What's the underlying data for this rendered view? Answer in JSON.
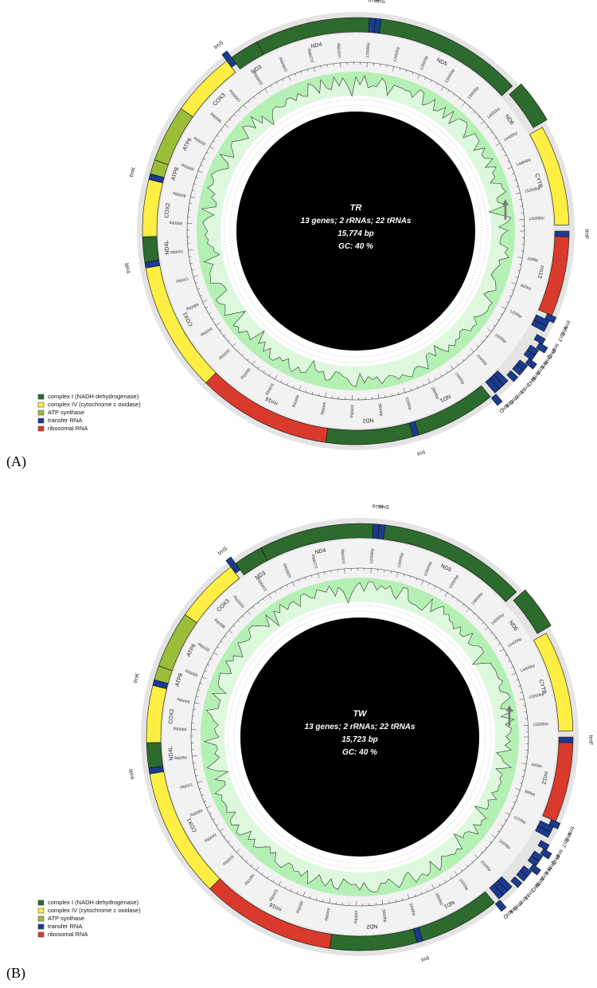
{
  "panels": [
    {
      "id": "A",
      "panel_label": "(A)",
      "center": {
        "name": "TR",
        "line2": "13 genes; 2 rRNAs; 22 tRNAs",
        "line3": "15,774 bp",
        "line4": "GC: 40 %"
      },
      "legend": [
        {
          "label": "complex I (NADH dehydrogenase)",
          "color": "#2d6a2d"
        },
        {
          "label": "complex IV (cytochrome c oxidase)",
          "color": "#ffee44"
        },
        {
          "label": "ATP synthase",
          "color": "#9cbd3a"
        },
        {
          "label": "transfer RNA",
          "color": "#1a3b8f"
        },
        {
          "label": "ribosomal RNA",
          "color": "#d93a2b"
        }
      ],
      "ticks": [
        "400bp",
        "800bp",
        "1200bp",
        "1600bp",
        "2000bp",
        "2400bp",
        "2800bp",
        "3200bp",
        "3600bp",
        "4000bp",
        "4400bp",
        "4800bp",
        "5200bp",
        "5600bp",
        "6000bp",
        "6400bp",
        "6800bp",
        "7200bp",
        "7600bp",
        "8000bp",
        "8400bp",
        "8800bp",
        "9200bp",
        "9600bp",
        "10000bp",
        "10400bp",
        "10800bp",
        "11200bp",
        "11600bp",
        "12000bp",
        "12400bp",
        "12800bp",
        "13200bp",
        "13600bp",
        "14000bp",
        "14400bp",
        "14800bp",
        "15200bp",
        "15600bp"
      ]
    },
    {
      "id": "B",
      "panel_label": "(B)",
      "center": {
        "name": "TW",
        "line2": "13 genes; 2 rRNAs; 22 tRNAs",
        "line3": "15,723 bp",
        "line4": "GC: 40 %"
      },
      "legend": [
        {
          "label": "complex I (NADH dehydrogenase)",
          "color": "#2d6a2d"
        },
        {
          "label": "complex IV (cytochrome c oxidase)",
          "color": "#ffee44"
        },
        {
          "label": "ATP synthase",
          "color": "#9cbd3a"
        },
        {
          "label": "transfer RNA",
          "color": "#1a3b8f"
        },
        {
          "label": "ribosomal RNA",
          "color": "#d93a2b"
        }
      ],
      "ticks": [
        "400bp",
        "800bp",
        "1200bp",
        "1600bp",
        "2000bp",
        "2400bp",
        "2800bp",
        "3200bp",
        "3600bp",
        "4000bp",
        "4400bp",
        "4800bp",
        "5200bp",
        "5600bp",
        "6000bp",
        "6400bp",
        "6800bp",
        "7200bp",
        "7600bp",
        "8000bp",
        "8400bp",
        "8800bp",
        "9200bp",
        "9600bp",
        "10000bp",
        "10400bp",
        "10800bp",
        "11200bp",
        "11600bp",
        "12000bp",
        "12400bp",
        "12800bp",
        "13200bp",
        "13600bp",
        "14000bp",
        "14400bp",
        "14800bp",
        "15200bp",
        "15600bp"
      ]
    }
  ],
  "genes": [
    {
      "name": "trnF",
      "start": 0,
      "end": 68,
      "strand": "heavy",
      "type": "trna",
      "color": "#1a3b8f"
    },
    {
      "name": "rrn12",
      "start": 68,
      "end": 1020,
      "strand": "heavy",
      "type": "rrna",
      "color": "#d93a2b"
    },
    {
      "name": "trnV",
      "start": 1020,
      "end": 1090,
      "strand": "light",
      "type": "trna",
      "color": "#1a3b8f"
    },
    {
      "name": "trnE",
      "start": 1090,
      "end": 1160,
      "strand": "heavy",
      "type": "trna",
      "color": "#1a3b8f"
    },
    {
      "name": "trnT",
      "start": 1160,
      "end": 1230,
      "strand": "heavy",
      "type": "trna",
      "color": "#1a3b8f"
    },
    {
      "name": "trnP",
      "start": 1300,
      "end": 1370,
      "strand": "light",
      "type": "trna",
      "color": "#1a3b8f"
    },
    {
      "name": "trnQ",
      "start": 1370,
      "end": 1440,
      "strand": "light2",
      "type": "trna",
      "color": "#1a3b8f"
    },
    {
      "name": "trnN",
      "start": 1450,
      "end": 1520,
      "strand": "light",
      "type": "trna",
      "color": "#1a3b8f"
    },
    {
      "name": "trnL",
      "start": 1520,
      "end": 1590,
      "strand": "light",
      "type": "trna",
      "color": "#1a3b8f"
    },
    {
      "name": "trnA",
      "start": 1590,
      "end": 1660,
      "strand": "light2",
      "type": "trna",
      "color": "#1a3b8f"
    },
    {
      "name": "trnW",
      "start": 1670,
      "end": 1740,
      "strand": "light",
      "type": "trna",
      "color": "#1a3b8f"
    },
    {
      "name": "trnC",
      "start": 1740,
      "end": 1810,
      "strand": "light",
      "type": "trna",
      "color": "#1a3b8f"
    },
    {
      "name": "trnM",
      "start": 1840,
      "end": 1910,
      "strand": "light",
      "type": "trna",
      "color": "#1a3b8f"
    },
    {
      "name": "trnY",
      "start": 1950,
      "end": 2020,
      "strand": "heavy",
      "type": "trna",
      "color": "#1a3b8f"
    },
    {
      "name": "trnG",
      "start": 2020,
      "end": 2090,
      "strand": "heavy",
      "type": "trna",
      "color": "#1a3b8f"
    },
    {
      "name": "trnL",
      "start": 2090,
      "end": 2160,
      "strand": "heavy",
      "type": "trna",
      "color": "#1a3b8f"
    },
    {
      "name": "trnD",
      "start": 2160,
      "end": 2230,
      "strand": "light2",
      "type": "trna",
      "color": "#1a3b8f"
    },
    {
      "name": "ND1",
      "start": 2230,
      "end": 3190,
      "strand": "heavy",
      "type": "nd",
      "color": "#2d6a2d"
    },
    {
      "name": "trnI",
      "start": 3190,
      "end": 3260,
      "strand": "heavy",
      "type": "trna",
      "color": "#1a3b8f"
    },
    {
      "name": "ND2",
      "start": 3260,
      "end": 4300,
      "strand": "heavy",
      "type": "nd",
      "color": "#2d6a2d"
    },
    {
      "name": "rrn16",
      "start": 4300,
      "end": 5900,
      "strand": "heavy",
      "type": "rrna",
      "color": "#d93a2b"
    },
    {
      "name": "COX1",
      "start": 5900,
      "end": 7450,
      "strand": "heavy",
      "type": "cox",
      "color": "#ffee44"
    },
    {
      "name": "trnR",
      "start": 7450,
      "end": 7520,
      "strand": "heavy",
      "type": "trna",
      "color": "#1a3b8f"
    },
    {
      "name": "ND4L",
      "start": 7520,
      "end": 7820,
      "strand": "heavy",
      "type": "nd",
      "color": "#2d6a2d"
    },
    {
      "name": "COX2",
      "start": 7820,
      "end": 8500,
      "strand": "heavy",
      "type": "cox",
      "color": "#ffee44"
    },
    {
      "name": "trnK",
      "start": 8500,
      "end": 8570,
      "strand": "heavy",
      "type": "trna",
      "color": "#1a3b8f"
    },
    {
      "name": "ATP8",
      "start": 8570,
      "end": 8740,
      "strand": "heavy",
      "type": "atp",
      "color": "#9cbd3a"
    },
    {
      "name": "ATP6",
      "start": 8740,
      "end": 9420,
      "strand": "heavy",
      "type": "atp",
      "color": "#9cbd3a"
    },
    {
      "name": "COX3",
      "start": 9420,
      "end": 10200,
      "strand": "heavy",
      "type": "cox",
      "color": "#ffee44"
    },
    {
      "name": "trnS",
      "start": 10200,
      "end": 10270,
      "strand": "outer",
      "type": "trna",
      "color": "#1a3b8f"
    },
    {
      "name": "ND3",
      "start": 10270,
      "end": 10620,
      "strand": "heavy",
      "type": "nd",
      "color": "#2d6a2d"
    },
    {
      "name": "ND4",
      "start": 10620,
      "end": 11990,
      "strand": "heavy",
      "type": "nd",
      "color": "#2d6a2d"
    },
    {
      "name": "trnH",
      "start": 11990,
      "end": 12060,
      "strand": "heavy",
      "type": "trna",
      "color": "#1a3b8f"
    },
    {
      "name": "trnS",
      "start": 12060,
      "end": 12130,
      "strand": "heavy",
      "type": "trna",
      "color": "#1a3b8f"
    },
    {
      "name": "ND5",
      "start": 12130,
      "end": 13900,
      "strand": "heavy",
      "type": "nd",
      "color": "#2d6a2d"
    },
    {
      "name": "ND6",
      "start": 13950,
      "end": 14450,
      "strand": "outer",
      "type": "nd",
      "color": "#2d6a2d"
    },
    {
      "name": "CYTB",
      "start": 14500,
      "end": 15700,
      "strand": "heavy",
      "type": "cox",
      "color": "#ffee44"
    }
  ],
  "colors": {
    "outer_ring": "#e4e4e4",
    "inner_ring": "#f2f2f2",
    "gc_fill": "#b4f0b4",
    "gc_line": "#2a8a2a",
    "core": "#000000",
    "arrow": "#777777"
  }
}
